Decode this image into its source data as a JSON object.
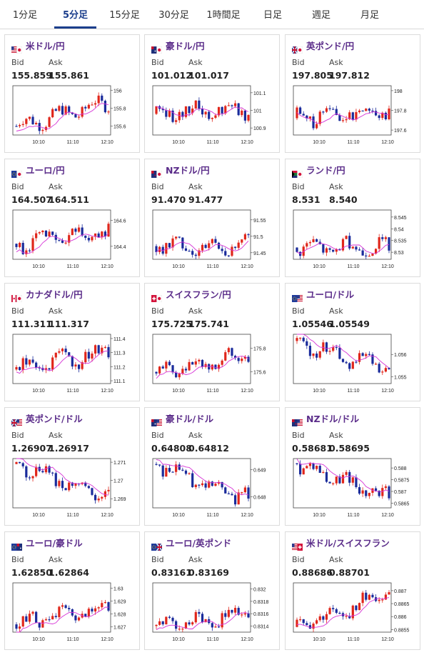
{
  "tabs": [
    {
      "label": "1分足",
      "active": false
    },
    {
      "label": "5分足",
      "active": true
    },
    {
      "label": "15分足",
      "active": false
    },
    {
      "label": "30分足",
      "active": false
    },
    {
      "label": "1時間足",
      "active": false
    },
    {
      "label": "日足",
      "active": false
    },
    {
      "label": "週足",
      "active": false
    },
    {
      "label": "月足",
      "active": false
    }
  ],
  "labels": {
    "bid": "Bid",
    "ask": "Ask"
  },
  "colors": {
    "up": "#e0261b",
    "down": "#1a2b9b",
    "ma": "#d633d6",
    "accent": "#1b3e8c",
    "pair": "#5b2d8a"
  },
  "cards": [
    {
      "pair": "米ドル/円",
      "flag": "us-jp",
      "bid": "155.859",
      "ask": "155.861",
      "chart_data": {
        "type": "candlestick",
        "x_ticks": [
          "10:10",
          "11:10",
          "12:10"
        ],
        "y_ticks": [
          "156",
          "155.8",
          "155.6"
        ],
        "y_tick_values": [
          156,
          155.8,
          155.6
        ],
        "ylim": [
          155.5,
          156.05
        ],
        "start": 155.6,
        "end": 155.86,
        "trend": "up"
      }
    },
    {
      "pair": "豪ドル/円",
      "flag": "au-jp",
      "bid": "101.012",
      "ask": "101.017",
      "chart_data": {
        "type": "candlestick",
        "x_ticks": [
          "10:10",
          "11:10",
          "12:10"
        ],
        "y_ticks": [
          "101.1",
          "101",
          "100.9"
        ],
        "y_tick_values": [
          101.1,
          101,
          100.9
        ],
        "ylim": [
          100.86,
          101.14
        ],
        "start": 100.98,
        "end": 101.01,
        "trend": "flat"
      }
    },
    {
      "pair": "英ポンド/円",
      "flag": "gb-jp",
      "bid": "197.805",
      "ask": "197.812",
      "chart_data": {
        "type": "candlestick",
        "x_ticks": [
          "10:10",
          "11:10",
          "12:10"
        ],
        "y_ticks": [
          "198",
          "197.8",
          "197.6"
        ],
        "y_tick_values": [
          198,
          197.8,
          197.6
        ],
        "ylim": [
          197.55,
          198.05
        ],
        "start": 197.72,
        "end": 197.81,
        "trend": "up"
      }
    },
    {
      "pair": "ユーロ/円",
      "flag": "eu-jp",
      "bid": "164.507",
      "ask": "164.511",
      "chart_data": {
        "type": "candlestick",
        "x_ticks": [
          "10:10",
          "11:10",
          "12:10"
        ],
        "y_ticks": [
          "164.6",
          "164.4"
        ],
        "y_tick_values": [
          164.6,
          164.4
        ],
        "ylim": [
          164.3,
          164.68
        ],
        "start": 164.42,
        "end": 164.51,
        "trend": "up"
      }
    },
    {
      "pair": "NZドル/円",
      "flag": "nz-jp",
      "bid": "91.470",
      "ask": "91.477",
      "chart_data": {
        "type": "candlestick",
        "x_ticks": [
          "10:10",
          "11:10",
          "12:10"
        ],
        "y_ticks": [
          "91.55",
          "91.5",
          "91.45"
        ],
        "y_tick_values": [
          91.55,
          91.5,
          91.45
        ],
        "ylim": [
          91.43,
          91.58
        ],
        "start": 91.47,
        "end": 91.47,
        "trend": "flat"
      }
    },
    {
      "pair": "ランド/円",
      "flag": "za-jp",
      "bid": "8.531",
      "ask": "8.540",
      "chart_data": {
        "type": "candlestick",
        "x_ticks": [
          "10:10",
          "11:10",
          "12:10"
        ],
        "y_ticks": [
          "8.545",
          "8.54",
          "8.535",
          "8.53"
        ],
        "y_tick_values": [
          8.545,
          8.54,
          8.535,
          8.53
        ],
        "ylim": [
          8.527,
          8.548
        ],
        "start": 8.532,
        "end": 8.532,
        "trend": "flat"
      }
    },
    {
      "pair": "カナダドル/円",
      "flag": "ca-jp",
      "bid": "111.311",
      "ask": "111.317",
      "chart_data": {
        "type": "candlestick",
        "x_ticks": [
          "10:10",
          "11:10",
          "12:10"
        ],
        "y_ticks": [
          "111.4",
          "111.3",
          "111.2",
          "111.1"
        ],
        "y_tick_values": [
          111.4,
          111.3,
          111.2,
          111.1
        ],
        "ylim": [
          111.08,
          111.43
        ],
        "start": 111.18,
        "end": 111.31,
        "trend": "up"
      }
    },
    {
      "pair": "スイスフラン/円",
      "flag": "ch-jp",
      "bid": "175.725",
      "ask": "175.741",
      "chart_data": {
        "type": "candlestick",
        "x_ticks": [
          "10:10",
          "11:10",
          "12:10"
        ],
        "y_ticks": [
          "175.8",
          "175.6"
        ],
        "y_tick_values": [
          175.8,
          175.6
        ],
        "ylim": [
          175.5,
          175.92
        ],
        "start": 175.6,
        "end": 175.73,
        "trend": "up"
      }
    },
    {
      "pair": "ユーロ/ドル",
      "flag": "eu-us",
      "bid": "1.05546",
      "ask": "1.05549",
      "chart_data": {
        "type": "candlestick",
        "x_ticks": [
          "10:10",
          "11:10",
          "12:10"
        ],
        "y_ticks": [
          "1.056",
          "1.055"
        ],
        "y_tick_values": [
          1.056,
          1.055
        ],
        "ylim": [
          1.0547,
          1.0569
        ],
        "start": 1.0566,
        "end": 1.0553,
        "trend": "down"
      }
    },
    {
      "pair": "英ポンド/ドル",
      "flag": "gb-us",
      "bid": "1.26907",
      "ask": "1.26917",
      "chart_data": {
        "type": "candlestick",
        "x_ticks": [
          "10:10",
          "11:10",
          "12:10"
        ],
        "y_ticks": [
          "1.271",
          "1.27",
          "1.269"
        ],
        "y_tick_values": [
          1.271,
          1.27,
          1.269
        ],
        "ylim": [
          1.2685,
          1.2712
        ],
        "start": 1.2709,
        "end": 1.269,
        "trend": "down"
      }
    },
    {
      "pair": "豪ドル/ドル",
      "flag": "au-us",
      "bid": "0.64808",
      "ask": "0.64812",
      "chart_data": {
        "type": "candlestick",
        "x_ticks": [
          "10:10",
          "11:10",
          "12:10"
        ],
        "y_ticks": [
          "0.649",
          "0.648"
        ],
        "y_tick_values": [
          0.649,
          0.648
        ],
        "ylim": [
          0.6476,
          0.6494
        ],
        "start": 0.6492,
        "end": 0.6479,
        "trend": "down"
      }
    },
    {
      "pair": "NZドル/ドル",
      "flag": "nz-us",
      "bid": "0.58681",
      "ask": "0.58695",
      "chart_data": {
        "type": "candlestick",
        "x_ticks": [
          "10:10",
          "11:10",
          "12:10"
        ],
        "y_ticks": [
          "0.588",
          "0.5875",
          "0.587",
          "0.5865"
        ],
        "y_tick_values": [
          0.588,
          0.5875,
          0.587,
          0.5865
        ],
        "ylim": [
          0.5863,
          0.5884
        ],
        "start": 0.5882,
        "end": 0.5867,
        "trend": "down"
      }
    },
    {
      "pair": "ユーロ/豪ドル",
      "flag": "eu-au",
      "bid": "1.62850",
      "ask": "1.62864",
      "chart_data": {
        "type": "candlestick",
        "x_ticks": [
          "10:10",
          "11:10",
          "12:10"
        ],
        "y_ticks": [
          "1.63",
          "1.629",
          "1.628",
          "1.627"
        ],
        "y_tick_values": [
          1.63,
          1.629,
          1.628,
          1.627
        ],
        "ylim": [
          1.6266,
          1.6304
        ],
        "start": 1.6272,
        "end": 1.6285,
        "trend": "up"
      }
    },
    {
      "pair": "ユーロ/英ポンド",
      "flag": "eu-gb",
      "bid": "0.83161",
      "ask": "0.83169",
      "chart_data": {
        "type": "candlestick",
        "x_ticks": [
          "10:10",
          "11:10",
          "12:10"
        ],
        "y_ticks": [
          "0.832",
          "0.8318",
          "0.8316",
          "0.8314"
        ],
        "y_tick_values": [
          0.832,
          0.8318,
          0.8316,
          0.8314
        ],
        "ylim": [
          0.8313,
          0.8321
        ],
        "start": 0.8314,
        "end": 0.8316,
        "trend": "up"
      }
    },
    {
      "pair": "米ドル/スイスフラン",
      "flag": "us-ch",
      "bid": "0.88686",
      "ask": "0.88701",
      "chart_data": {
        "type": "candlestick",
        "x_ticks": [
          "10:10",
          "11:10",
          "12:10"
        ],
        "y_ticks": [
          "0.887",
          "0.8865",
          "0.886",
          "0.8855"
        ],
        "y_tick_values": [
          0.887,
          0.8865,
          0.886,
          0.8855
        ],
        "ylim": [
          0.8854,
          0.8873
        ],
        "start": 0.8856,
        "end": 0.8869,
        "trend": "up"
      }
    }
  ]
}
